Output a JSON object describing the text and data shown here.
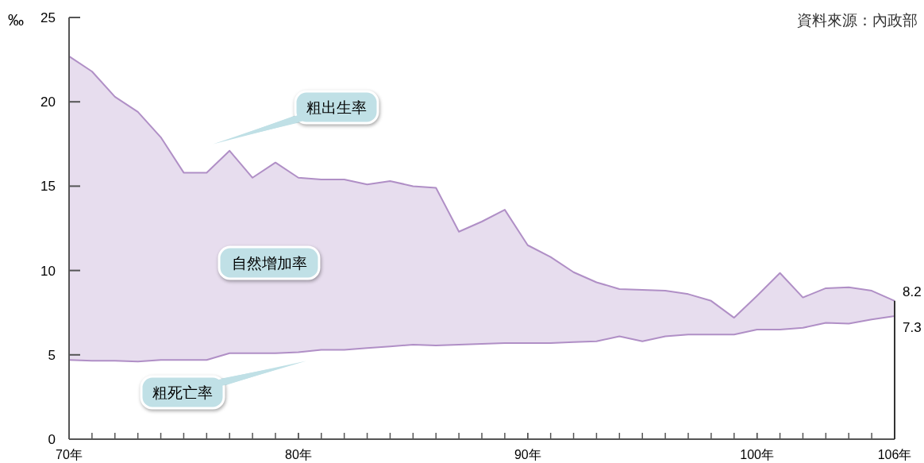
{
  "chart_data": {
    "type": "line",
    "ylabel": "‰",
    "x": [
      70,
      71,
      72,
      73,
      74,
      75,
      76,
      77,
      78,
      79,
      80,
      81,
      82,
      83,
      84,
      85,
      86,
      87,
      88,
      89,
      90,
      91,
      92,
      93,
      94,
      95,
      96,
      97,
      98,
      99,
      100,
      101,
      102,
      103,
      104,
      105,
      106
    ],
    "series": [
      {
        "name": "粗出生率",
        "color": "#b08fc6",
        "values": [
          22.7,
          21.8,
          20.3,
          19.4,
          17.9,
          15.8,
          15.8,
          17.1,
          15.5,
          16.4,
          15.5,
          15.4,
          15.4,
          15.1,
          15.3,
          15.0,
          14.9,
          12.3,
          12.9,
          13.6,
          11.5,
          10.8,
          9.9,
          9.3,
          8.9,
          8.85,
          8.8,
          8.6,
          8.2,
          7.2,
          8.5,
          9.85,
          8.4,
          8.95,
          9.0,
          8.8,
          8.2
        ],
        "value_labels": [
          null,
          null,
          null,
          null,
          null,
          null,
          null,
          null,
          null,
          null,
          null,
          null,
          null,
          null,
          null,
          null,
          null,
          null,
          null,
          null,
          null,
          null,
          null,
          null,
          null,
          null,
          null,
          null,
          null,
          null,
          null,
          null,
          null,
          null,
          null,
          null,
          "8.2"
        ],
        "upper": [
          22.7,
          21.8,
          20.3,
          19.4,
          17.9,
          15.8,
          15.8,
          17.1,
          15.5,
          16.4,
          15.5,
          15.4,
          15.4,
          15.1,
          15.3,
          15.0,
          14.9,
          12.3,
          12.9,
          13.6,
          11.5,
          10.8,
          9.9,
          9.3,
          8.9,
          8.85,
          8.8,
          8.6,
          8.2,
          7.2,
          8.5,
          9.85,
          8.4,
          8.95,
          9.0,
          8.8,
          8.2
        ],
        "lower": [
          4.7,
          4.65,
          4.65,
          4.6,
          4.7,
          4.7,
          4.7,
          5.1,
          5.1,
          5.1,
          5.15,
          5.3,
          5.3,
          5.4,
          5.5,
          5.6,
          5.55,
          5.6,
          5.65,
          5.7,
          5.7,
          5.7,
          5.75,
          5.8,
          6.1,
          5.8,
          6.1,
          6.2,
          6.2,
          6.2,
          6.5,
          6.5,
          6.6,
          6.9,
          6.85,
          7.1,
          7.3
        ]
      },
      {
        "name": "粗死亡率",
        "color": "#b08fc6",
        "values": [
          4.7,
          4.65,
          4.65,
          4.6,
          4.7,
          4.7,
          4.7,
          5.1,
          5.1,
          5.1,
          5.15,
          5.3,
          5.3,
          5.4,
          5.5,
          5.6,
          5.55,
          5.6,
          5.65,
          5.7,
          5.7,
          5.7,
          5.75,
          5.8,
          6.1,
          5.8,
          6.1,
          6.2,
          6.2,
          6.2,
          6.5,
          6.5,
          6.6,
          6.9,
          6.85,
          7.1,
          7.3
        ],
        "value_labels": [
          null,
          null,
          null,
          null,
          null,
          null,
          null,
          null,
          null,
          null,
          null,
          null,
          null,
          null,
          null,
          null,
          null,
          null,
          null,
          null,
          null,
          null,
          null,
          null,
          null,
          null,
          null,
          null,
          null,
          null,
          null,
          null,
          null,
          null,
          null,
          null,
          "7.3"
        ]
      }
    ],
    "xlim": [
      70,
      106
    ],
    "ylim": [
      0,
      25
    ],
    "xticks": [
      {
        "value": 70,
        "label": "70年"
      },
      {
        "value": 80,
        "label": "80年"
      },
      {
        "value": 90,
        "label": "90年"
      },
      {
        "value": 100,
        "label": "100年"
      },
      {
        "value": 106,
        "label": "106年"
      }
    ],
    "yticks": [
      0,
      5,
      10,
      15,
      20,
      25
    ],
    "annotations": [
      "自然增加率",
      "資料來源：內政部"
    ]
  }
}
